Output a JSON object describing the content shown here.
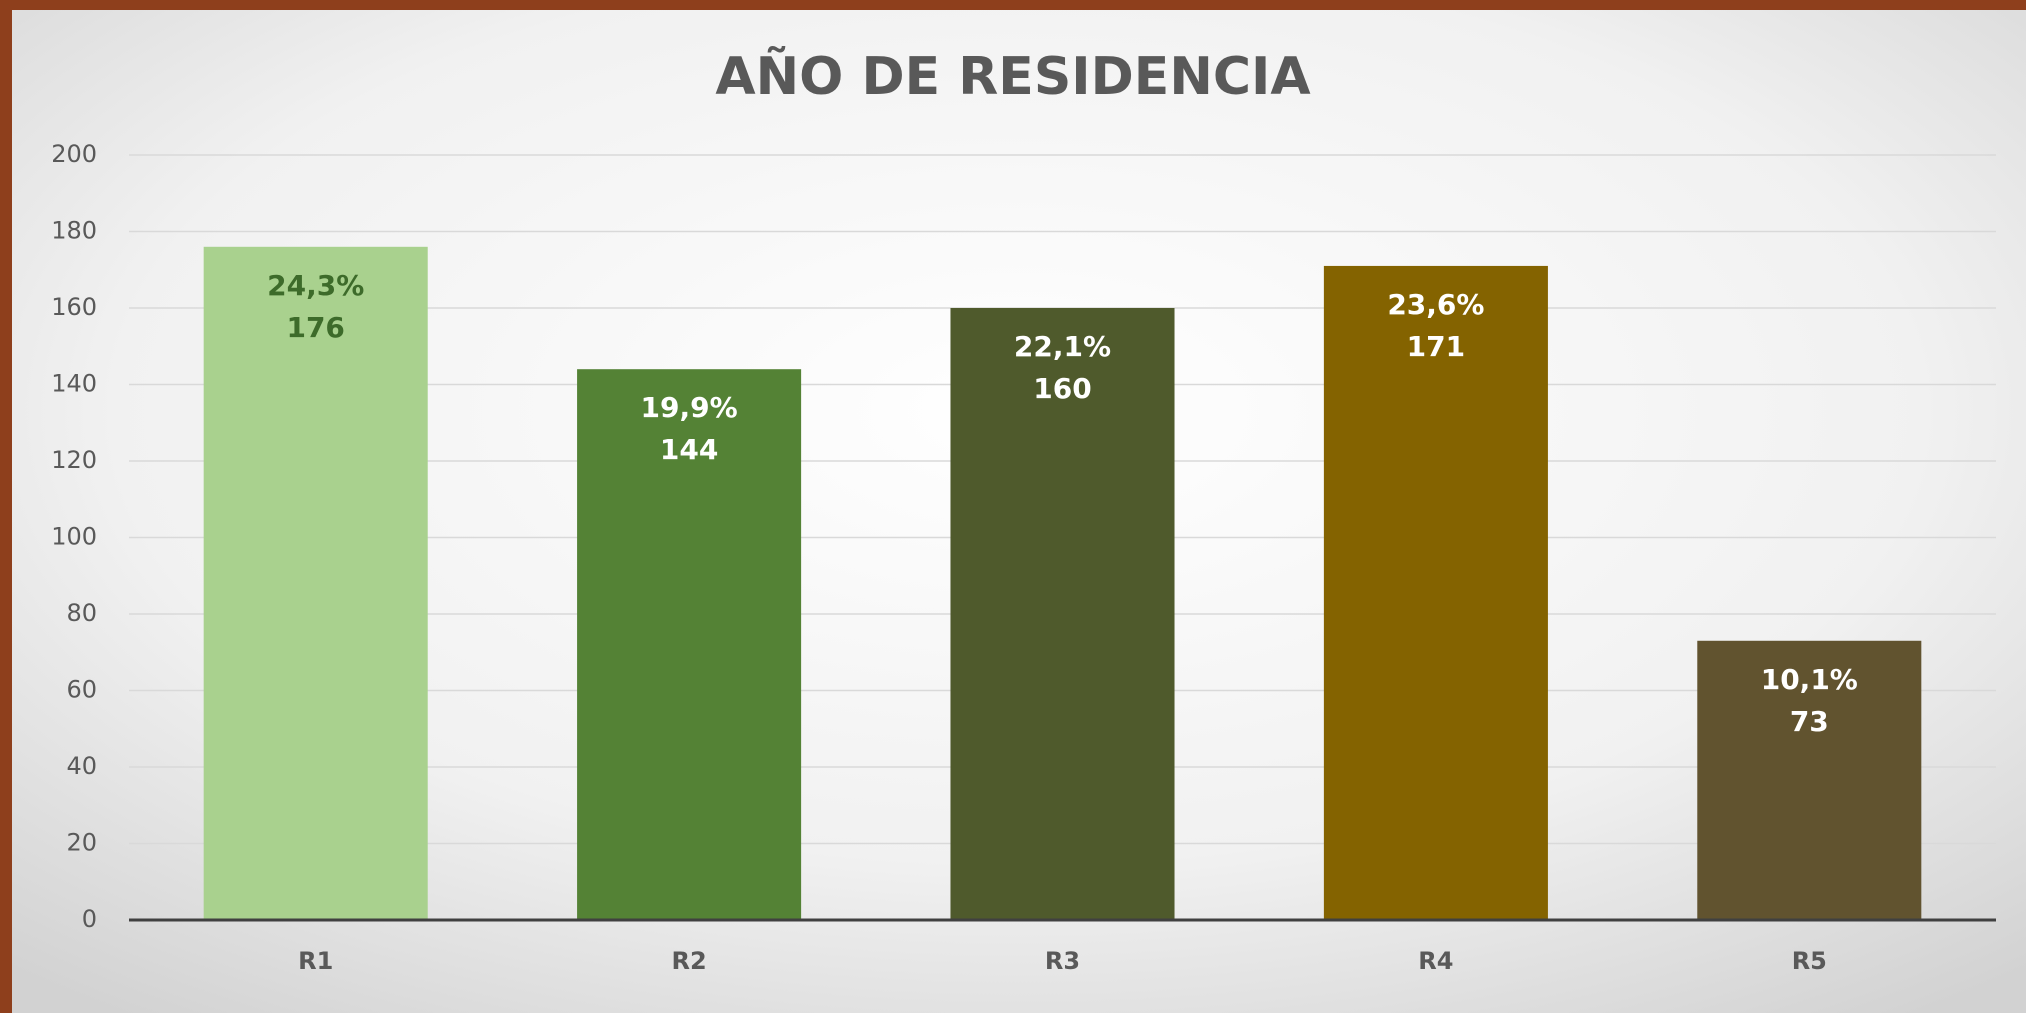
{
  "chart_data": {
    "type": "bar",
    "title": "AÑO DE RESIDENCIA",
    "categories": [
      "R1",
      "R2",
      "R3",
      "R4",
      "R5"
    ],
    "values": [
      176,
      144,
      160,
      171,
      73
    ],
    "shares": {
      "values": [
        24.3,
        19.9,
        22.1,
        23.6,
        10.1
      ],
      "value_labels": [
        "24,3%",
        "19,9%",
        "22,1%",
        "23,6%",
        "10,1%"
      ]
    },
    "colors": [
      "#a9d18e",
      "#548235",
      "#4f5a2c",
      "#846300",
      "#61532f"
    ],
    "label_colors": [
      "#3d6b2a",
      "#ffffff",
      "#ffffff",
      "#ffffff",
      "#ffffff"
    ],
    "ylim": [
      0,
      200
    ],
    "yticks": [
      0,
      20,
      40,
      60,
      80,
      100,
      120,
      140,
      160,
      180,
      200
    ],
    "grid": true
  }
}
